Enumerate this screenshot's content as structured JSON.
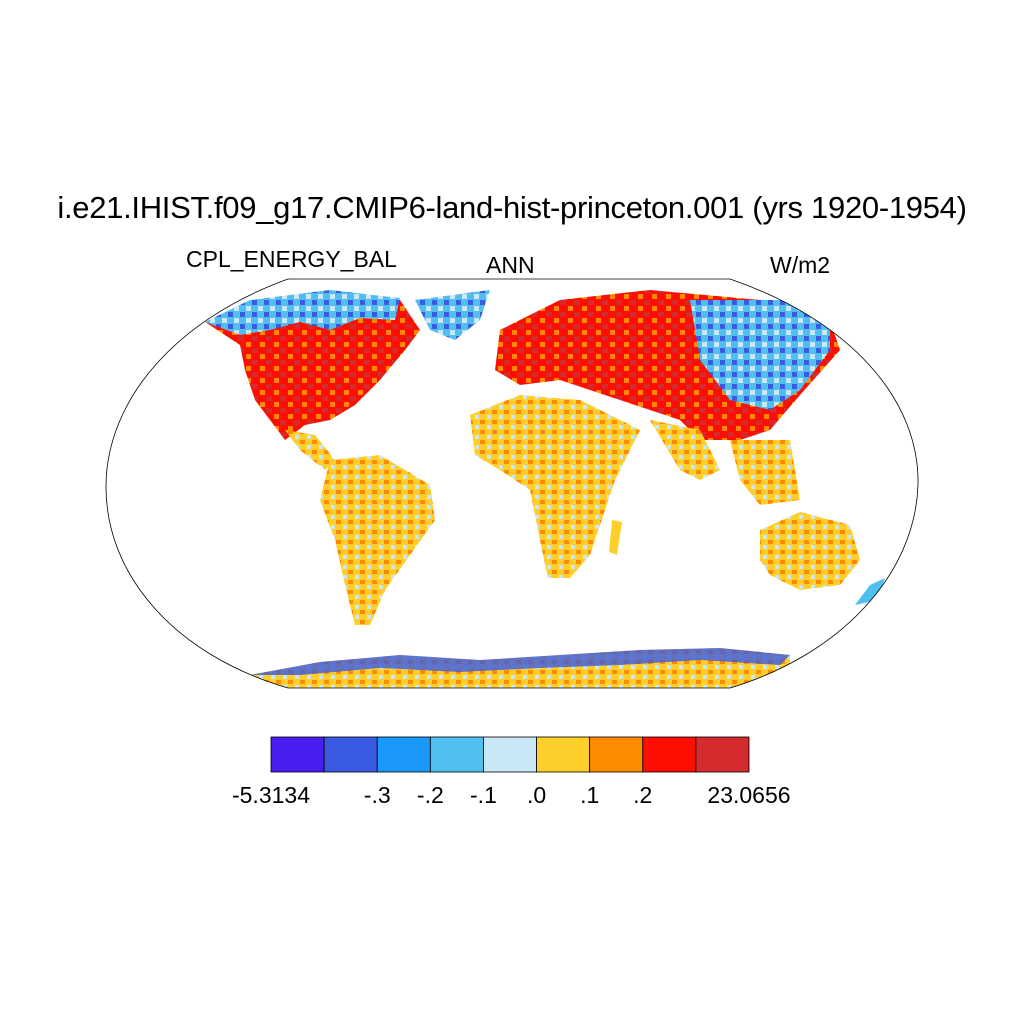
{
  "title": "i.e21.IHIST.f09_g17.CMIP6-land-hist-princeton.001 (yrs 1920-1954)",
  "subtitles": {
    "left": "CPL_ENERGY_BAL",
    "center": "ANN",
    "right": "W/m2"
  },
  "legend": {
    "colors": [
      "#4a1ef0",
      "#3a5ae4",
      "#1b99fb",
      "#4fbff0",
      "#c9e7f5",
      "#fecf2a",
      "#fe8a00",
      "#fe0e00",
      "#d52a2e"
    ],
    "labels": [
      "-5.3134",
      "-.3",
      "-.2",
      "-.1",
      ".0",
      ".1",
      ".2",
      "23.0656"
    ]
  }
}
